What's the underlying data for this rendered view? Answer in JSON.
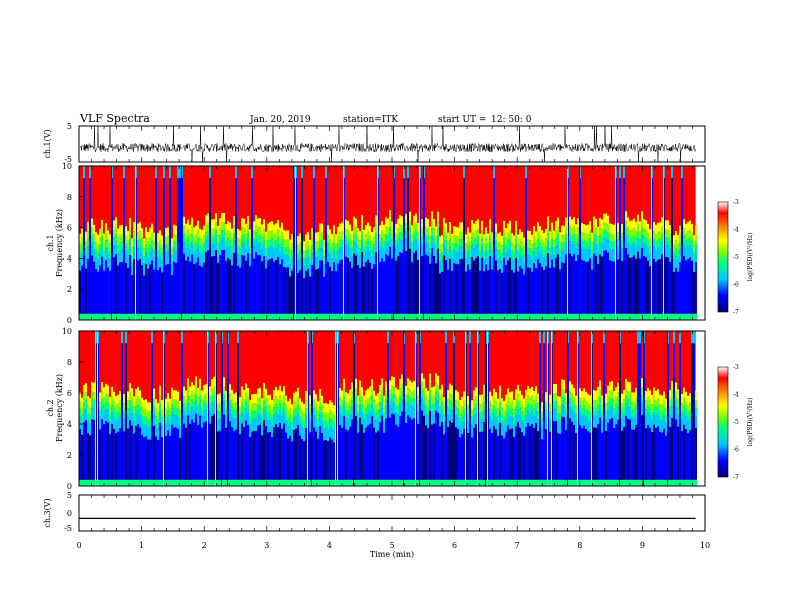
{
  "header": {
    "title": "VLF Spectra",
    "date": "Jan. 20, 2019",
    "station": "station=ITK",
    "start_label": "start UT =",
    "start_time": "12: 50: 0"
  },
  "colors": {
    "scale": [
      "#000080",
      "#0000ff",
      "#00c8ff",
      "#00ff80",
      "#80ff00",
      "#ffff00",
      "#ff8000",
      "#ff0000"
    ]
  },
  "chart_data": [
    {
      "type": "line",
      "name": "ch1-waveform",
      "ylabel": "ch.1(V)",
      "ylim": [
        -5,
        5
      ],
      "y_ticks": [
        "5",
        "-5"
      ],
      "description_values": {
        "baseline": -1,
        "noise_amplitude": 1.2,
        "spike_max": 5,
        "spike_min": -5
      }
    },
    {
      "type": "heatmap",
      "name": "ch1-spectrogram",
      "ylabel_line1": "ch.1",
      "ylabel_line2": "Frequency (kHz)",
      "ylim": [
        0,
        10
      ],
      "y_ticks": [
        "0",
        "2",
        "4",
        "6",
        "8",
        "10"
      ],
      "colorbar": {
        "label": "log(PSD)(V²/Hz)",
        "ticks": [
          "-3",
          "-4",
          "-5",
          "-6",
          "-7"
        ],
        "range": [
          -7,
          -3
        ]
      },
      "lower_edge_kHz": [
        4.5,
        4.2,
        4.8,
        4.6,
        4.1,
        4.7,
        5.0,
        4.4,
        4.3,
        4.6,
        4.9,
        4.5
      ]
    },
    {
      "type": "heatmap",
      "name": "ch2-spectrogram",
      "ylabel_line1": "ch.2",
      "ylabel_line2": "Frequency (kHz)",
      "ylim": [
        0,
        10
      ],
      "y_ticks": [
        "0",
        "2",
        "4",
        "6",
        "8",
        "10"
      ],
      "colorbar": {
        "label": "log(PSD)(V²/Hz)",
        "ticks": [
          "-3",
          "-4",
          "-5",
          "-6",
          "-7"
        ],
        "range": [
          -7,
          -3
        ]
      },
      "lower_edge_kHz": [
        4.6,
        4.3,
        4.9,
        4.5,
        4.2,
        4.8,
        5.1,
        4.5,
        4.4,
        4.7,
        4.8,
        4.6
      ]
    },
    {
      "type": "line",
      "name": "ch3-waveform",
      "ylabel": "ch.3(V)",
      "ylim": [
        -5,
        5
      ],
      "y_ticks": [
        "5",
        "0",
        "-5"
      ],
      "description_values": {
        "baseline": -1.5
      }
    }
  ],
  "xaxis": {
    "label": "Time (min)",
    "ticks": [
      "0",
      "1",
      "2",
      "3",
      "4",
      "5",
      "6",
      "7",
      "8",
      "9",
      "10"
    ],
    "xlim": [
      0,
      10
    ],
    "data_end": 9.85
  }
}
